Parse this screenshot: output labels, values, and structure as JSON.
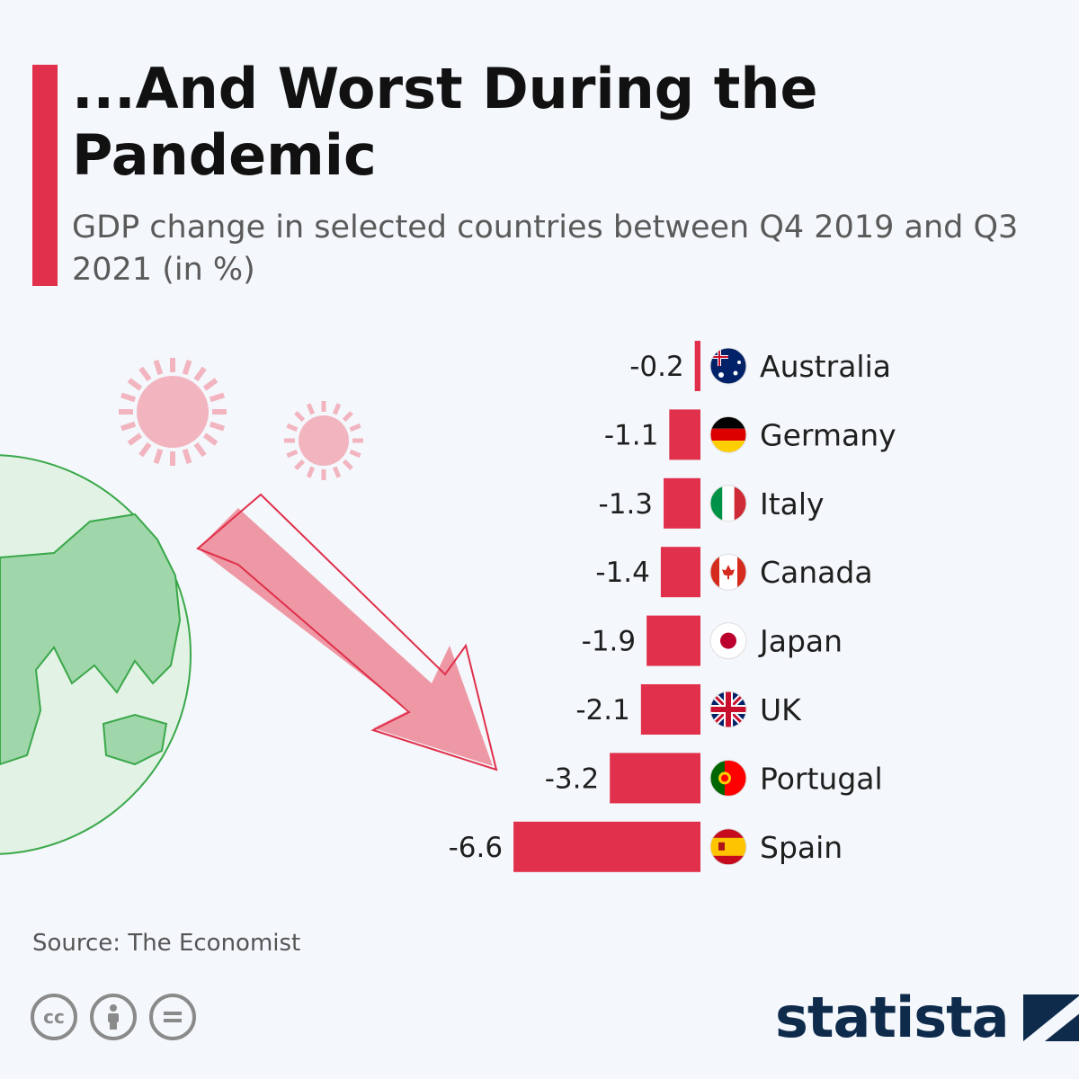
{
  "title": "...And Worst During the Pandemic",
  "subtitle": "GDP change in selected countries between Q4 2019 and Q3 2021 (in %)",
  "source": "Source: The Economist",
  "brand": "statista",
  "licenses": [
    "cc",
    "by",
    "nd"
  ],
  "colors": {
    "accent": "#e0304b",
    "bar": "#e0304b",
    "arrow": "#ec9aa6",
    "virus": "#f2b5c0",
    "globe": "#8fd0a0",
    "brand": "#0f2b4c"
  },
  "chart_data": {
    "type": "bar",
    "orientation": "horizontal",
    "title": "...And Worst During the Pandemic",
    "subtitle": "GDP change in selected countries between Q4 2019 and Q3 2021 (in %)",
    "categories": [
      "Australia",
      "Germany",
      "Italy",
      "Canada",
      "Japan",
      "UK",
      "Portugal",
      "Spain"
    ],
    "values": [
      -0.2,
      -1.1,
      -1.3,
      -1.4,
      -1.9,
      -2.1,
      -3.2,
      -6.6
    ],
    "value_labels": [
      "-0.2",
      "-1.1",
      "-1.3",
      "-1.4",
      "-1.9",
      "-2.1",
      "-3.2",
      "-6.6"
    ],
    "flags": [
      "australia-flag-icon",
      "germany-flag-icon",
      "italy-flag-icon",
      "canada-flag-icon",
      "japan-flag-icon",
      "uk-flag-icon",
      "portugal-flag-icon",
      "spain-flag-icon"
    ],
    "xlim": [
      -6.6,
      0
    ],
    "grid": false,
    "legend": "none"
  }
}
